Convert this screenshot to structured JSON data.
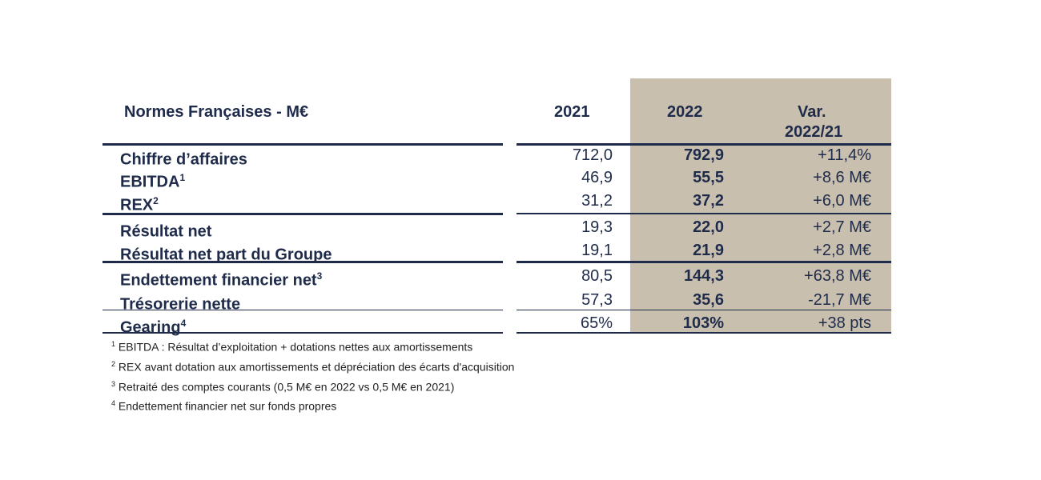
{
  "header": {
    "title": "Normes Françaises - M€",
    "col_2021": "2021",
    "col_2022": "2022",
    "col_var_line1": "Var.",
    "col_var_line2": "2022/21"
  },
  "rows": [
    {
      "label": "Chiffre d’affaires",
      "sup": "",
      "v2021": "712,0",
      "v2022": "792,9",
      "var": "+11,4%"
    },
    {
      "label": "EBITDA",
      "sup": "1",
      "v2021": "46,9",
      "v2022": "55,5",
      "var": "+8,6 M€"
    },
    {
      "label": "REX",
      "sup": "2",
      "v2021": "31,2",
      "v2022": "37,2",
      "var": "+6,0 M€"
    },
    {
      "label": "Résultat net",
      "sup": "",
      "v2021": "19,3",
      "v2022": "22,0",
      "var": "+2,7 M€"
    },
    {
      "label": "Résultat net part du Groupe",
      "sup": "",
      "v2021": "19,1",
      "v2022": "21,9",
      "var": "+2,8 M€"
    },
    {
      "label": "Endettement financier net",
      "sup": "3",
      "v2021": "80,5",
      "v2022": "144,3",
      "var": "+63,8 M€"
    },
    {
      "label": "Trésorerie nette",
      "sup": "",
      "v2021": "57,3",
      "v2022": "35,6",
      "var": "-21,7 M€"
    },
    {
      "label": "Gearing",
      "sup": "4",
      "v2021": "65%",
      "v2022": "103%",
      "var": "+38 pts"
    }
  ],
  "footnotes": [
    {
      "num": "1",
      "text": "EBITDA : Résultat d’exploitation + dotations nettes aux amortissements"
    },
    {
      "num": "2",
      "text": "REX avant dotation aux amortissements et dépréciation des écarts d'acquisition"
    },
    {
      "num": "3",
      "text": "Retraité des comptes courants (0,5 M€ en 2022 vs 0,5 M€ en 2021)"
    },
    {
      "num": "4",
      "text": "Endettement financier net sur fonds propres"
    }
  ],
  "colors": {
    "text": "#1f2b4a",
    "highlight_column": "#c9bfae"
  }
}
